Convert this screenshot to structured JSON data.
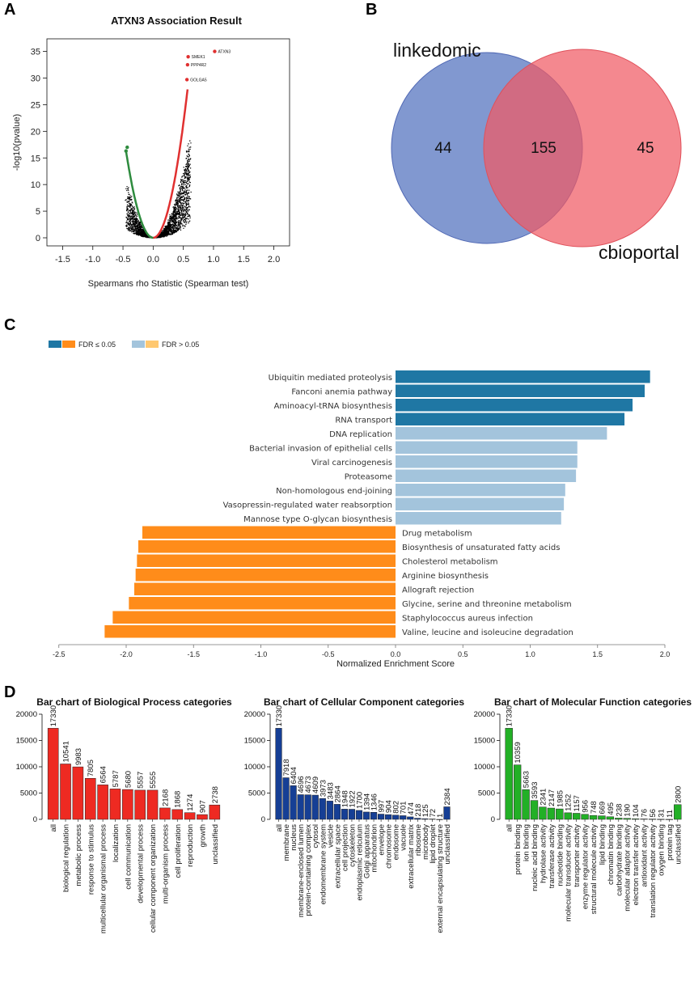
{
  "panel_labels": [
    "A",
    "B",
    "C",
    "D"
  ],
  "chart_data": [
    {
      "id": "A",
      "type": "scatter",
      "title": "ATXN3 Association Result",
      "xlabel": "Spearmans rho Statistic (Spearman test)",
      "ylabel": "-log10(pvalue)",
      "xlim": [
        -1.6,
        2.1
      ],
      "ylim": [
        0,
        36
      ],
      "xticks": [
        "-1.5",
        "-1.0",
        "-0.5",
        "0.0",
        "0.5",
        "1.0",
        "1.5",
        "2.0"
      ],
      "yticks": [
        "0",
        "5",
        "10",
        "15",
        "20",
        "25",
        "30",
        "35"
      ],
      "highlight_points": [
        {
          "x": 1.02,
          "y": 35.0,
          "label": "ATXN3",
          "color": "#e03030"
        },
        {
          "x": 0.58,
          "y": 34.0,
          "label": "SMEK1",
          "color": "#e03030"
        },
        {
          "x": 0.57,
          "y": 32.5,
          "label": "PPP4R2",
          "color": "#e03030"
        },
        {
          "x": 0.56,
          "y": 29.7,
          "label": "GOLGA5",
          "color": "#e03030"
        },
        {
          "x": -0.43,
          "y": 17.0,
          "label": "",
          "color": "#2e8b3e"
        },
        {
          "x": -0.45,
          "y": 16.3,
          "label": "",
          "color": "#2e8b3e"
        }
      ]
    },
    {
      "id": "B",
      "type": "venn",
      "sets": [
        {
          "name": "linkedomic",
          "color": "#6b86c8"
        },
        {
          "name": "cbioportal",
          "color": "#f07f85"
        }
      ],
      "only_left": "44",
      "intersection": "155",
      "only_right": "45"
    },
    {
      "id": "C",
      "type": "bar",
      "orientation": "horizontal",
      "xlabel": "Normalized Enrichment Score",
      "xlim": [
        -2.5,
        2.0
      ],
      "xticks": [
        "-2.5",
        "-2.0",
        "-1.5",
        "-1.0",
        "-0.5",
        "0.0",
        "0.5",
        "1.0",
        "1.5",
        "2.0"
      ],
      "legend": [
        {
          "label": "FDR ≤ 0.05",
          "colors": [
            "#1f77a4",
            "#ff8c1a"
          ]
        },
        {
          "label": "FDR > 0.05",
          "colors": [
            "#a3c4dc",
            "#ffc870"
          ]
        }
      ],
      "categories": [
        "Ubiquitin mediated proteolysis",
        "Fanconi anemia pathway",
        "Aminoacyl-tRNA biosynthesis",
        "RNA transport",
        "DNA replication",
        "Bacterial invasion of epithelial cells",
        "Viral carcinogenesis",
        "Proteasome",
        "Non-homologous end-joining",
        "Vasopressin-regulated water reabsorption",
        "Mannose type O-glycan biosynthesis",
        "Drug metabolism",
        "Biosynthesis of unsaturated fatty acids",
        "Cholesterol metabolism",
        "Arginine biosynthesis",
        "Allograft rejection",
        "Glycine, serine and threonine metabolism",
        "Staphylococcus aureus infection",
        "Valine, leucine and isoleucine degradation"
      ],
      "values": [
        1.89,
        1.85,
        1.76,
        1.7,
        1.57,
        1.35,
        1.35,
        1.34,
        1.26,
        1.25,
        1.23,
        -1.88,
        -1.91,
        -1.92,
        -1.93,
        -1.94,
        -1.98,
        -2.1,
        -2.16
      ],
      "colors": [
        "#1f77a4",
        "#1f77a4",
        "#1f77a4",
        "#1f77a4",
        "#a3c4dc",
        "#a3c4dc",
        "#a3c4dc",
        "#a3c4dc",
        "#a3c4dc",
        "#a3c4dc",
        "#a3c4dc",
        "#ff8c1a",
        "#ff8c1a",
        "#ff8c1a",
        "#ff8c1a",
        "#ff8c1a",
        "#ff8c1a",
        "#ff8c1a",
        "#ff8c1a"
      ]
    },
    {
      "id": "D1",
      "type": "bar",
      "title": "Bar chart of Biological Process categories",
      "color": "#ee2a22",
      "ylim": [
        0,
        20000
      ],
      "yticks": [
        "0",
        "5000",
        "10000",
        "15000",
        "20000"
      ],
      "categories": [
        "all",
        "biological regulation",
        "metabolic process",
        "response to stimulus",
        "multicellular organismal process",
        "localization",
        "cell communication",
        "developmental process",
        "cellular component organization",
        "multi-organism process",
        "cell proliferation",
        "reproduction",
        "growth",
        "unclassified"
      ],
      "values": [
        17330,
        10541,
        9983,
        7805,
        6564,
        5787,
        5680,
        5557,
        5555,
        2168,
        1868,
        1274,
        907,
        2738
      ]
    },
    {
      "id": "D2",
      "type": "bar",
      "title": "Bar chart of Cellular Component categories",
      "color": "#163f95",
      "ylim": [
        0,
        20000
      ],
      "yticks": [
        "0",
        "5000",
        "10000",
        "15000",
        "20000"
      ],
      "categories": [
        "all",
        "membrane",
        "nucleus",
        "membrane-enclosed lumen",
        "protein-containing complex",
        "cytosol",
        "endomembrane system",
        "vesicle",
        "extracellular space",
        "cell projection",
        "cytoskeleton",
        "endoplasmic reticulum",
        "Golgi apparatus",
        "mitochondrion",
        "envelope",
        "chromosome",
        "endosome",
        "vacuole",
        "extracellular matrix",
        "ribosome",
        "microbody",
        "lipid droplet",
        "external encapsulating structure",
        "unclassified"
      ],
      "values": [
        17330,
        7918,
        6404,
        4696,
        4673,
        4609,
        3973,
        3483,
        2864,
        1948,
        1922,
        1700,
        1394,
        1346,
        997,
        904,
        802,
        701,
        474,
        218,
        125,
        72,
        1,
        2384
      ]
    },
    {
      "id": "D3",
      "type": "bar",
      "title": "Bar chart of Molecular Function categories",
      "color": "#22b026",
      "ylim": [
        0,
        20000
      ],
      "yticks": [
        "0",
        "5000",
        "10000",
        "15000",
        "20000"
      ],
      "categories": [
        "all",
        "protein binding",
        "ion binding",
        "nucleic acid binding",
        "hydrolase activity",
        "transferase activity",
        "nucleotide binding",
        "molecular transducer activity",
        "transporter activity",
        "enzyme regulator activity",
        "structural molecule activity",
        "lipid binding",
        "chromatin binding",
        "carbohydrate binding",
        "molecular adaptor activity",
        "electron transfer activity",
        "antioxidant activity",
        "translation regulator activity",
        "oxygen binding",
        "protein tag",
        "unclassified"
      ],
      "values": [
        17330,
        10359,
        5663,
        3593,
        2341,
        2147,
        1985,
        1252,
        1157,
        956,
        748,
        669,
        495,
        238,
        190,
        104,
        76,
        56,
        31,
        11,
        2800
      ]
    }
  ]
}
